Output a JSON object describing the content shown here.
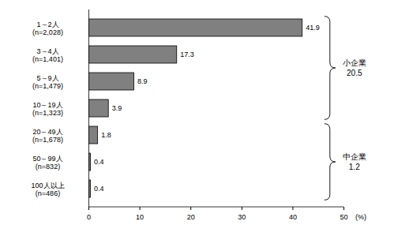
{
  "chart_data": {
    "type": "bar",
    "orientation": "horizontal",
    "categories": [
      "1～2人\n(n=2,028)",
      "3～4人\n(n=1,401)",
      "5～9人\n(n=1,479)",
      "10～19人\n(n=1,323)",
      "20～49人\n(n=1,678)",
      "50～99人\n(n=832)",
      "100人以上\n(n=486)"
    ],
    "values": [
      41.9,
      17.3,
      8.9,
      3.9,
      1.8,
      0.4,
      0.4
    ],
    "color": "#808080",
    "data_labels": true,
    "x_label": "(%)",
    "xlim": [
      0,
      50
    ],
    "xticks": [
      0,
      10,
      20,
      30,
      40,
      50
    ],
    "grid": false,
    "groups": [
      {
        "name": "小企業",
        "value": 20.5,
        "categories": [
          "1～2人\n(n=2,028)",
          "3～4人\n(n=1,401)",
          "5～9人\n(n=1,479)",
          "10～19人\n(n=1,323)"
        ]
      },
      {
        "name": "中企業",
        "value": 1.2,
        "categories": [
          "20～49人\n(n=1,678)",
          "50～99人\n(n=832)",
          "100人以上\n(n=486)"
        ]
      }
    ]
  }
}
